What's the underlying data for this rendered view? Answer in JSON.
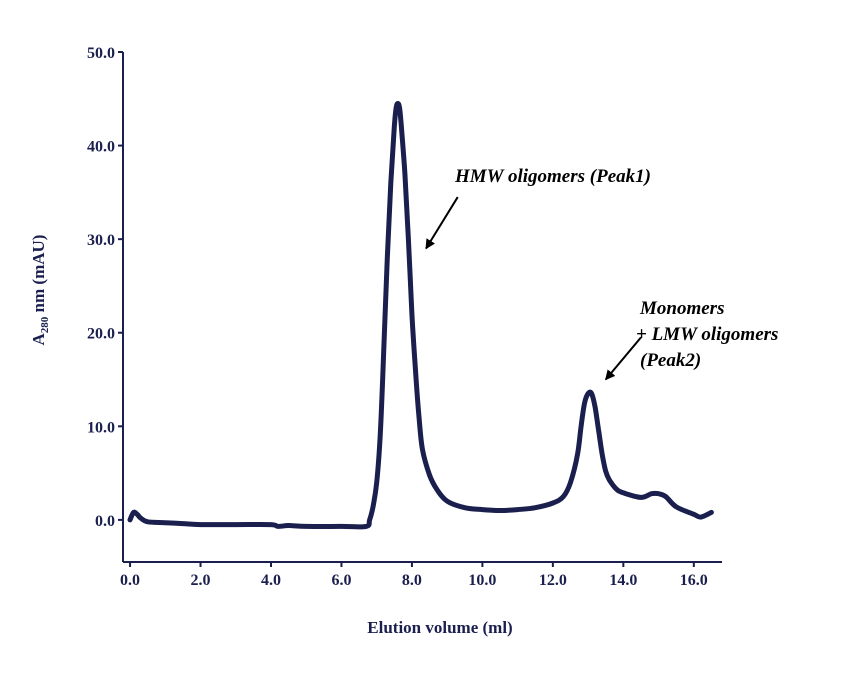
{
  "chart_data": {
    "type": "line",
    "title": "",
    "xlabel": "Elution volume (ml)",
    "ylabel_main": "A",
    "ylabel_sub": "280",
    "ylabel_rest": " nm (mAU)",
    "xlim": [
      -0.2,
      16.8
    ],
    "ylim": [
      -4.5,
      50.0
    ],
    "x_ticks": [
      0,
      2,
      4,
      6,
      8,
      10,
      12,
      14,
      16
    ],
    "x_tick_labels": [
      "0.0",
      "2.0",
      "4.0",
      "6.0",
      "8.0",
      "10.0",
      "12.0",
      "14.0",
      "16.0"
    ],
    "y_ticks": [
      0,
      10,
      20,
      30,
      40,
      50
    ],
    "y_tick_labels": [
      "0.0",
      "10.0",
      "20.0",
      "30.0",
      "40.0",
      "50.0"
    ],
    "grid": false,
    "legend": "none",
    "colors": {
      "series": "#1a1f4e",
      "axis": "#1a1f4e",
      "annotation": "#000000"
    },
    "series": [
      {
        "x": [
          0.0,
          0.1,
          0.2,
          0.3,
          0.5,
          1.0,
          1.5,
          2.0,
          3.0,
          4.0,
          4.2,
          4.5,
          5.0,
          6.0,
          6.7,
          6.8,
          6.9,
          7.0,
          7.1,
          7.2,
          7.3,
          7.4,
          7.5,
          7.55,
          7.6,
          7.65,
          7.7,
          7.8,
          7.9,
          8.0,
          8.1,
          8.2,
          8.3,
          8.5,
          8.7,
          9.0,
          9.5,
          10.0,
          10.5,
          11.0,
          11.5,
          12.0,
          12.3,
          12.5,
          12.7,
          12.8,
          12.9,
          13.0,
          13.1,
          13.2,
          13.3,
          13.4,
          13.5,
          13.6,
          13.8,
          14.0,
          14.5,
          14.8,
          15.0,
          15.2,
          15.5,
          16.0,
          16.2,
          16.5
        ],
        "y": [
          0.0,
          0.8,
          0.6,
          0.2,
          -0.2,
          -0.3,
          -0.4,
          -0.5,
          -0.5,
          -0.5,
          -0.7,
          -0.6,
          -0.7,
          -0.7,
          -0.7,
          0.0,
          1.5,
          4.0,
          9.0,
          18.0,
          28.0,
          36.0,
          42.0,
          44.0,
          44.5,
          44.0,
          42.0,
          37.0,
          30.0,
          22.0,
          16.0,
          11.0,
          7.5,
          4.8,
          3.3,
          2.0,
          1.3,
          1.1,
          1.0,
          1.1,
          1.3,
          1.8,
          2.5,
          4.0,
          7.0,
          10.0,
          12.5,
          13.5,
          13.5,
          12.0,
          9.5,
          7.0,
          5.2,
          4.3,
          3.3,
          2.9,
          2.4,
          2.8,
          2.8,
          2.5,
          1.4,
          0.6,
          0.3,
          0.8
        ]
      }
    ],
    "annotations": [
      {
        "lines": [
          "HMW oligomers (Peak1)"
        ],
        "arrow_from": [
          9.3,
          34.5
        ],
        "arrow_to": [
          8.4,
          29.0
        ]
      },
      {
        "lines": [
          "Monomers",
          "+ LMW oligomers",
          "(Peak2)"
        ],
        "arrow_from": [
          14.5,
          19.5
        ],
        "arrow_to": [
          13.5,
          15.0
        ]
      }
    ]
  }
}
